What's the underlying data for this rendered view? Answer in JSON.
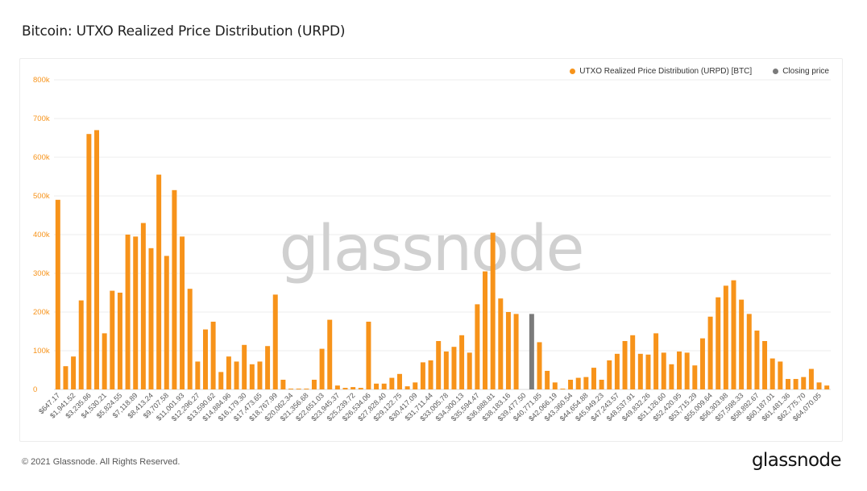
{
  "page": {
    "title": "Bitcoin: UTXO Realized Price Distribution (URPD)",
    "copyright": "© 2021 Glassnode. All Rights Reserved.",
    "logo_text": "glassnode",
    "watermark": "glassnode"
  },
  "legend": {
    "items": [
      {
        "label": "UTXO Realized Price Distribution (URPD) [BTC]",
        "color": "#f7931a"
      },
      {
        "label": "Closing price",
        "color": "#7b7b7b"
      }
    ]
  },
  "colors": {
    "bar": "#f7931a",
    "closing": "#7b7b7b",
    "grid": "#ececec"
  },
  "chart_data": {
    "type": "bar",
    "title": "Bitcoin: UTXO Realized Price Distribution (URPD)",
    "ylim": [
      0,
      800000
    ],
    "y_ticks": [
      {
        "value": 0,
        "label": "0"
      },
      {
        "value": 100000,
        "label": "100k"
      },
      {
        "value": 200000,
        "label": "200k"
      },
      {
        "value": 300000,
        "label": "300k"
      },
      {
        "value": 400000,
        "label": "400k"
      },
      {
        "value": 500000,
        "label": "500k"
      },
      {
        "value": 600000,
        "label": "600k"
      },
      {
        "value": 700000,
        "label": "700k"
      },
      {
        "value": 800000,
        "label": "800k"
      }
    ],
    "x_tick_labels": [
      {
        "index": 0,
        "label": "$647.17"
      },
      {
        "index": 2,
        "label": "$1,941.52"
      },
      {
        "index": 4,
        "label": "$3,235.86"
      },
      {
        "index": 6,
        "label": "$4,530.21"
      },
      {
        "index": 8,
        "label": "$5,824.55"
      },
      {
        "index": 10,
        "label": "$7,118.89"
      },
      {
        "index": 12,
        "label": "$8,413.24"
      },
      {
        "index": 14,
        "label": "$9,707.58"
      },
      {
        "index": 16,
        "label": "$11,001.93"
      },
      {
        "index": 18,
        "label": "$12,296.27"
      },
      {
        "index": 20,
        "label": "$13,590.62"
      },
      {
        "index": 22,
        "label": "$14,884.96"
      },
      {
        "index": 24,
        "label": "$16,179.30"
      },
      {
        "index": 26,
        "label": "$17,473.65"
      },
      {
        "index": 28,
        "label": "$18,767.99"
      },
      {
        "index": 30,
        "label": "$20,062.34"
      },
      {
        "index": 32,
        "label": "$21,356.68"
      },
      {
        "index": 34,
        "label": "$22,651.03"
      },
      {
        "index": 36,
        "label": "$23,945.37"
      },
      {
        "index": 38,
        "label": "$25,239.72"
      },
      {
        "index": 40,
        "label": "$26,534.06"
      },
      {
        "index": 42,
        "label": "$27,828.40"
      },
      {
        "index": 44,
        "label": "$29,122.75"
      },
      {
        "index": 46,
        "label": "$30,417.09"
      },
      {
        "index": 48,
        "label": "$31,711.44"
      },
      {
        "index": 50,
        "label": "$33,005.78"
      },
      {
        "index": 52,
        "label": "$34,300.13"
      },
      {
        "index": 54,
        "label": "$35,594.47"
      },
      {
        "index": 56,
        "label": "$36,888.81"
      },
      {
        "index": 58,
        "label": "$38,183.16"
      },
      {
        "index": 60,
        "label": "$39,477.50"
      },
      {
        "index": 62,
        "label": "$40,771.85"
      },
      {
        "index": 64,
        "label": "$42,066.19"
      },
      {
        "index": 66,
        "label": "$43,360.54"
      },
      {
        "index": 68,
        "label": "$44,654.88"
      },
      {
        "index": 70,
        "label": "$45,949.23"
      },
      {
        "index": 72,
        "label": "$47,243.57"
      },
      {
        "index": 74,
        "label": "$48,537.91"
      },
      {
        "index": 76,
        "label": "$49,832.26"
      },
      {
        "index": 78,
        "label": "$51,126.60"
      },
      {
        "index": 80,
        "label": "$52,420.95"
      },
      {
        "index": 82,
        "label": "$53,715.29"
      },
      {
        "index": 84,
        "label": "$55,009.64"
      },
      {
        "index": 86,
        "label": "$56,303.98"
      },
      {
        "index": 88,
        "label": "$57,598.33"
      },
      {
        "index": 90,
        "label": "$58,892.67"
      },
      {
        "index": 92,
        "label": "$60,187.01"
      },
      {
        "index": 94,
        "label": "$61,481.36"
      },
      {
        "index": 96,
        "label": "$62,775.70"
      },
      {
        "index": 98,
        "label": "$64,070.05"
      }
    ],
    "closing_price_index": 61,
    "series": [
      {
        "name": "UTXO Realized Price Distribution (URPD) [BTC]",
        "values": [
          490000,
          60000,
          85000,
          230000,
          660000,
          670000,
          145000,
          255000,
          250000,
          400000,
          395000,
          430000,
          365000,
          555000,
          345000,
          515000,
          395000,
          260000,
          72000,
          155000,
          175000,
          45000,
          85000,
          72000,
          115000,
          65000,
          72000,
          112000,
          245000,
          25000,
          2000,
          2000,
          2000,
          25000,
          105000,
          180000,
          10000,
          4000,
          6000,
          4000,
          175000,
          15000,
          15000,
          30000,
          40000,
          8000,
          18000,
          70000,
          75000,
          125000,
          98000,
          110000,
          140000,
          95000,
          220000,
          305000,
          405000,
          235000,
          200000,
          195000,
          0,
          0,
          122000,
          48000,
          18000,
          2000,
          25000,
          30000,
          32000,
          56000,
          25000,
          75000,
          92000,
          125000,
          140000,
          92000,
          90000,
          145000,
          95000,
          65000,
          98000,
          95000,
          62000,
          132000,
          188000,
          238000,
          268000,
          282000,
          232000,
          195000,
          152000,
          125000,
          80000,
          72000,
          27000,
          27000,
          32000,
          53000,
          18000,
          10000
        ]
      },
      {
        "name": "Closing price",
        "values": [
          0,
          0,
          0,
          0,
          0,
          0,
          0,
          0,
          0,
          0,
          0,
          0,
          0,
          0,
          0,
          0,
          0,
          0,
          0,
          0,
          0,
          0,
          0,
          0,
          0,
          0,
          0,
          0,
          0,
          0,
          0,
          0,
          0,
          0,
          0,
          0,
          0,
          0,
          0,
          0,
          0,
          0,
          0,
          0,
          0,
          0,
          0,
          0,
          0,
          0,
          0,
          0,
          0,
          0,
          0,
          0,
          0,
          0,
          0,
          0,
          0,
          195000,
          0,
          0,
          0,
          0,
          0,
          0,
          0,
          0,
          0,
          0,
          0,
          0,
          0,
          0,
          0,
          0,
          0,
          0,
          0,
          0,
          0,
          0,
          0,
          0,
          0,
          0,
          0,
          0,
          0,
          0,
          0,
          0,
          0,
          0,
          0,
          0,
          0,
          0
        ]
      }
    ]
  }
}
